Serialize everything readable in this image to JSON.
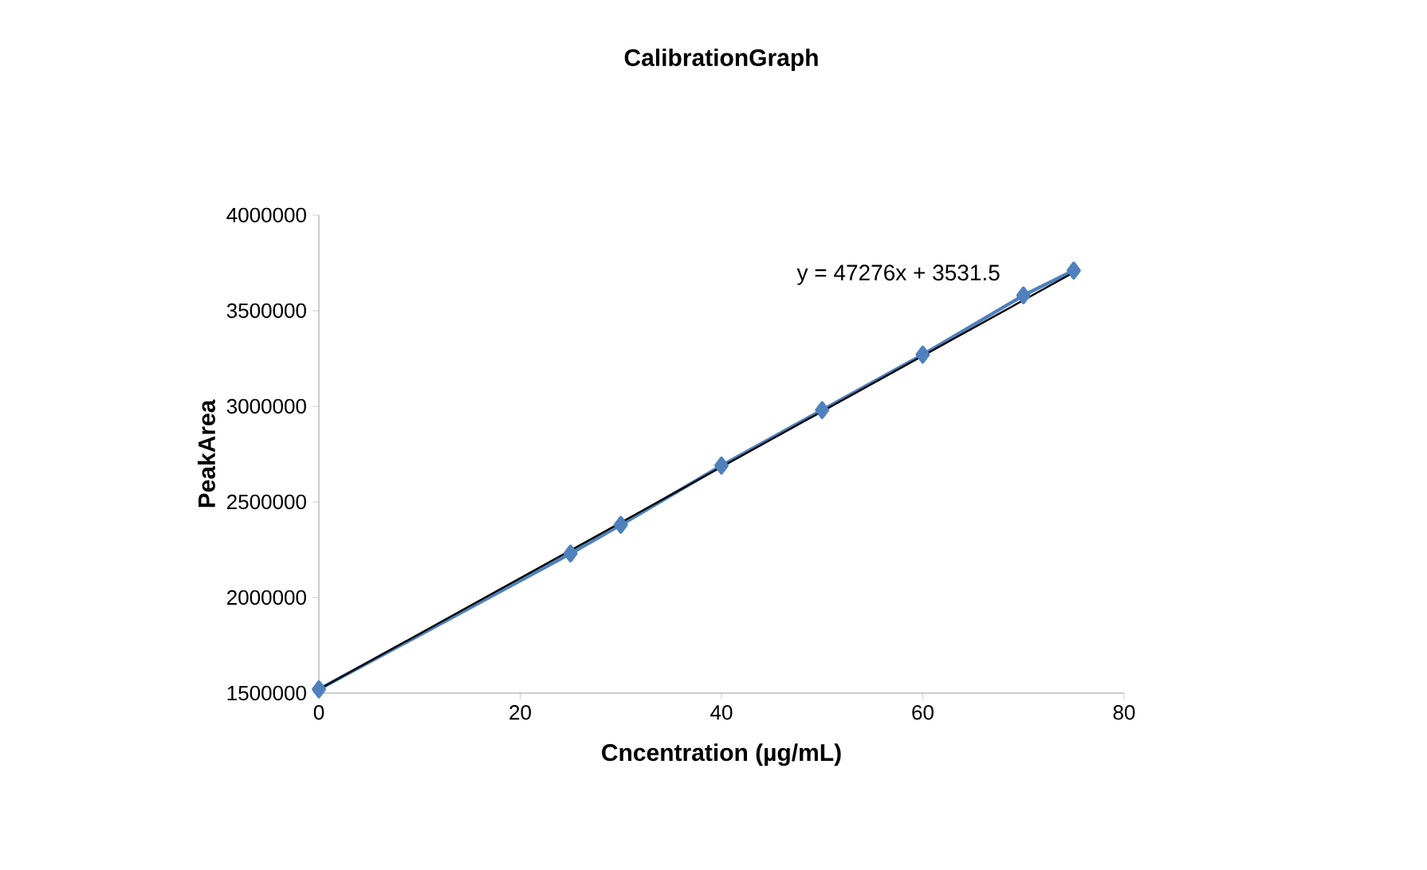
{
  "chart_data": {
    "type": "line",
    "title": "CalibrationGraph",
    "xlabel": "Cncentration (µg/mL)",
    "ylabel": "PeakArea",
    "series": [
      {
        "color": "#4f81bd",
        "marker": "diamond",
        "x": [
          0,
          25,
          30,
          40,
          50,
          60,
          70,
          75
        ],
        "values": [
          1520000,
          2230000,
          2380000,
          2690000,
          2980000,
          3270000,
          3580000,
          3710000
        ]
      },
      {
        "color": "#000000",
        "marker": "none",
        "x": [
          0,
          75
        ],
        "values": [
          1520000,
          3700000
        ]
      }
    ],
    "annotations": [
      "y = 47276x + 3531.5"
    ],
    "xlim": [
      0,
      80
    ],
    "xticks": [
      0,
      20,
      40,
      60,
      80
    ],
    "ylim": [
      1500000,
      4000000
    ],
    "yticks": [
      1500000,
      2000000,
      2500000,
      3000000,
      3500000,
      4000000
    ],
    "grid": false
  }
}
